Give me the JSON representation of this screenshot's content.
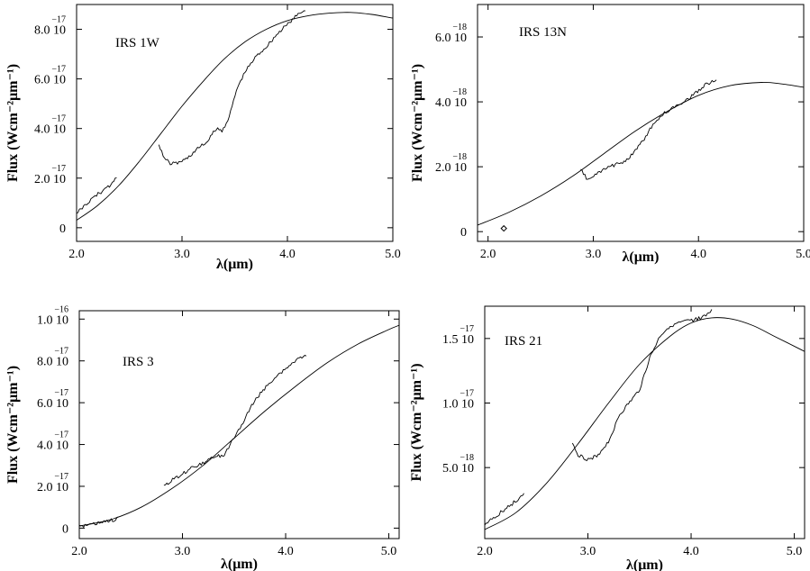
{
  "chart_data": [
    {
      "type": "line",
      "annotations": [
        "IRS 1W"
      ],
      "xlabel": "λ(μm)",
      "ylabel": "Flux (Wcm⁻²μm⁻¹)",
      "xlim": [
        2.0,
        5.0
      ],
      "ylim": [
        -0.55,
        9.0
      ],
      "xticks": [
        {
          "v": 2.0,
          "label": "2.0"
        },
        {
          "v": 3.0,
          "label": "3.0"
        },
        {
          "v": 4.0,
          "label": "4.0"
        },
        {
          "v": 5.0,
          "label": "5.0"
        }
      ],
      "yticks": [
        {
          "v": 0,
          "mant": "0",
          "exp": ""
        },
        {
          "v": 2.0,
          "mant": "2.0 10",
          "exp": "−17"
        },
        {
          "v": 4.0,
          "mant": "4.0 10",
          "exp": "−17"
        },
        {
          "v": 6.0,
          "mant": "6.0 10",
          "exp": "−17"
        },
        {
          "v": 8.0,
          "mant": "8.0 10",
          "exp": "−17"
        }
      ],
      "series": [
        {
          "style": "smooth",
          "x": [
            2.0,
            2.2,
            2.4,
            2.6,
            2.8,
            3.0,
            3.2,
            3.4,
            3.6,
            3.8,
            4.0,
            4.2,
            4.4,
            4.6,
            4.8,
            5.0
          ],
          "y": [
            0.3,
            0.9,
            1.7,
            2.7,
            3.8,
            4.9,
            5.9,
            6.8,
            7.5,
            8.0,
            8.35,
            8.55,
            8.65,
            8.68,
            8.6,
            8.45
          ]
        },
        {
          "style": "noisy",
          "x": [
            2.0,
            2.1,
            2.2,
            2.3,
            2.38
          ],
          "y": [
            0.6,
            1.0,
            1.35,
            1.65,
            2.0
          ]
        },
        {
          "style": "noisy",
          "x": [
            2.78,
            2.82,
            2.88,
            2.95,
            3.05,
            3.15,
            3.25,
            3.32,
            3.38,
            3.45,
            3.52,
            3.6,
            3.7,
            3.8,
            3.9,
            4.0,
            4.1,
            4.17
          ],
          "y": [
            3.4,
            2.9,
            2.6,
            2.6,
            2.8,
            3.2,
            3.5,
            4.0,
            3.9,
            4.5,
            5.6,
            6.3,
            6.9,
            7.3,
            7.8,
            8.2,
            8.6,
            8.8
          ]
        }
      ],
      "points": []
    },
    {
      "type": "line",
      "annotations": [
        "IRS 13N"
      ],
      "xlabel": "λ(μm)",
      "ylabel": "Flux (Wcm⁻²μm⁻¹)",
      "xlim": [
        1.9,
        5.0
      ],
      "ylim": [
        -0.3,
        7.0
      ],
      "xticks": [
        {
          "v": 2.0,
          "label": "2.0"
        },
        {
          "v": 3.0,
          "label": "3.0"
        },
        {
          "v": 4.0,
          "label": "4.0"
        },
        {
          "v": 5.0,
          "label": "5.0"
        }
      ],
      "yticks": [
        {
          "v": 0,
          "mant": "0",
          "exp": ""
        },
        {
          "v": 2.0,
          "mant": "2.0 10",
          "exp": "−18"
        },
        {
          "v": 4.0,
          "mant": "4.0 10",
          "exp": "−18"
        },
        {
          "v": 6.0,
          "mant": "6.0 10",
          "exp": "−18"
        }
      ],
      "series": [
        {
          "style": "smooth",
          "x": [
            1.9,
            2.2,
            2.5,
            2.8,
            3.1,
            3.4,
            3.7,
            4.0,
            4.3,
            4.6,
            4.8,
            5.0
          ],
          "y": [
            0.2,
            0.6,
            1.1,
            1.7,
            2.4,
            3.1,
            3.7,
            4.2,
            4.5,
            4.6,
            4.55,
            4.45
          ]
        },
        {
          "style": "noisy",
          "x": [
            2.88,
            2.95,
            3.05,
            3.15,
            3.25,
            3.35,
            3.45,
            3.55,
            3.65,
            3.75,
            3.85,
            3.95,
            4.05,
            4.17
          ],
          "y": [
            1.9,
            1.6,
            1.8,
            2.0,
            2.1,
            2.3,
            2.7,
            3.2,
            3.6,
            3.8,
            4.0,
            4.2,
            4.5,
            4.7
          ]
        }
      ],
      "points": [
        {
          "x": 2.15,
          "y": 0.1,
          "marker": "diamond"
        }
      ]
    },
    {
      "type": "line",
      "annotations": [
        "IRS 3"
      ],
      "xlabel": "λ(μm)",
      "ylabel": "Flux (Wcm⁻²μm⁻¹)",
      "xlim": [
        2.0,
        5.1
      ],
      "ylim": [
        -0.5,
        10.4
      ],
      "xticks": [
        {
          "v": 2.0,
          "label": "2.0"
        },
        {
          "v": 3.0,
          "label": "3.0"
        },
        {
          "v": 4.0,
          "label": "4.0"
        },
        {
          "v": 5.0,
          "label": "5.0"
        }
      ],
      "yticks": [
        {
          "v": 0,
          "mant": "0",
          "exp": ""
        },
        {
          "v": 2.0,
          "mant": "2.0 10",
          "exp": "−17"
        },
        {
          "v": 4.0,
          "mant": "4.0 10",
          "exp": "−17"
        },
        {
          "v": 6.0,
          "mant": "6.0 10",
          "exp": "−17"
        },
        {
          "v": 8.0,
          "mant": "8.0 10",
          "exp": "−17"
        },
        {
          "v": 10.0,
          "mant": "1.0 10",
          "exp": "−16"
        }
      ],
      "series": [
        {
          "style": "smooth",
          "x": [
            2.0,
            2.3,
            2.6,
            2.9,
            3.2,
            3.5,
            3.8,
            4.1,
            4.4,
            4.7,
            5.0,
            5.1
          ],
          "y": [
            0.1,
            0.4,
            1.0,
            1.9,
            3.0,
            4.3,
            5.6,
            6.8,
            7.9,
            8.8,
            9.5,
            9.7
          ]
        },
        {
          "style": "noisy",
          "x": [
            2.0,
            2.1,
            2.2,
            2.3,
            2.38
          ],
          "y": [
            0.05,
            0.15,
            0.25,
            0.35,
            0.45
          ]
        },
        {
          "style": "noisy",
          "x": [
            2.82,
            2.9,
            3.0,
            3.1,
            3.2,
            3.3,
            3.4,
            3.5,
            3.6,
            3.7,
            3.8,
            3.9,
            4.0,
            4.1,
            4.2
          ],
          "y": [
            2.0,
            2.3,
            2.6,
            2.9,
            3.1,
            3.4,
            3.5,
            4.3,
            5.2,
            6.1,
            6.7,
            7.2,
            7.6,
            8.0,
            8.3
          ]
        }
      ],
      "points": []
    },
    {
      "type": "line",
      "annotations": [
        "IRS 21"
      ],
      "xlabel": "λ(μm)",
      "ylabel": "Flux (Wcm⁻²μm⁻¹)",
      "xlim": [
        2.0,
        5.1
      ],
      "ylim": [
        -0.05,
        1.75
      ],
      "xticks": [
        {
          "v": 2.0,
          "label": "2.0"
        },
        {
          "v": 3.0,
          "label": "3.0"
        },
        {
          "v": 4.0,
          "label": "4.0"
        },
        {
          "v": 5.0,
          "label": "5.0"
        }
      ],
      "yticks": [
        {
          "v": 0.5,
          "mant": "5.0 10",
          "exp": "−18"
        },
        {
          "v": 1.0,
          "mant": "1.0 10",
          "exp": "−17"
        },
        {
          "v": 1.5,
          "mant": "1.5 10",
          "exp": "−17"
        }
      ],
      "series": [
        {
          "style": "smooth",
          "x": [
            2.0,
            2.3,
            2.6,
            2.9,
            3.2,
            3.5,
            3.8,
            4.0,
            4.2,
            4.4,
            4.6,
            4.8,
            5.1
          ],
          "y": [
            0.02,
            0.15,
            0.38,
            0.68,
            1.0,
            1.3,
            1.52,
            1.62,
            1.66,
            1.65,
            1.6,
            1.52,
            1.4
          ]
        },
        {
          "style": "noisy",
          "x": [
            2.0,
            2.1,
            2.2,
            2.3,
            2.38
          ],
          "y": [
            0.06,
            0.12,
            0.18,
            0.24,
            0.3
          ]
        },
        {
          "style": "noisy",
          "x": [
            2.85,
            2.9,
            3.0,
            3.1,
            3.2,
            3.3,
            3.4,
            3.5,
            3.6,
            3.7,
            3.8,
            3.9,
            4.0,
            4.1,
            4.2
          ],
          "y": [
            0.7,
            0.6,
            0.56,
            0.6,
            0.7,
            0.9,
            1.0,
            1.1,
            1.35,
            1.52,
            1.6,
            1.62,
            1.64,
            1.66,
            1.72
          ]
        }
      ],
      "points": []
    }
  ]
}
